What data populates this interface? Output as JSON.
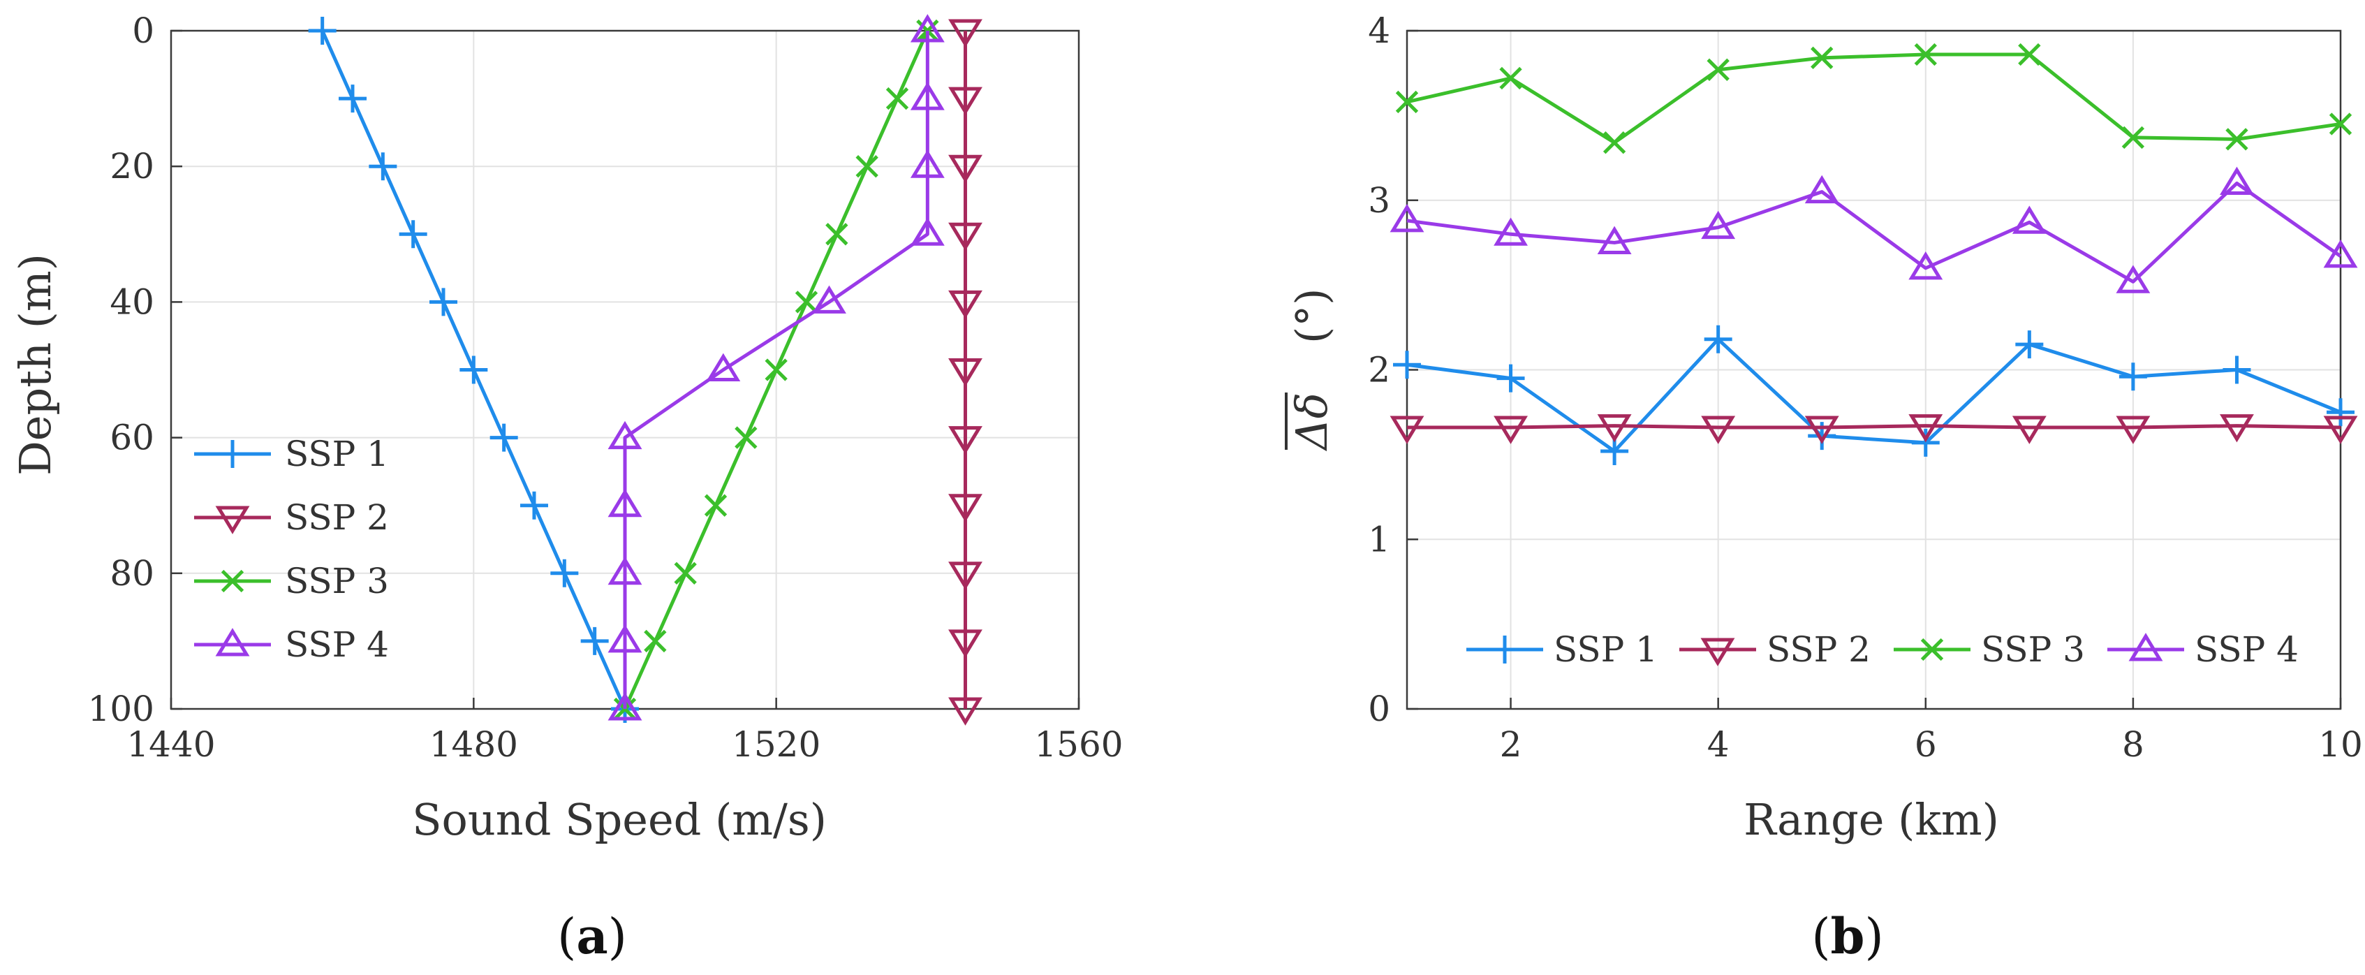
{
  "chart_data": [
    {
      "id": "a",
      "panel_label": "a",
      "type": "line",
      "xlabel": "Sound Speed (m/s)",
      "ylabel": "Depth (m)",
      "xlim": [
        1440,
        1560
      ],
      "ylim": [
        0,
        100
      ],
      "y_reversed": true,
      "xticks": [
        1440,
        1480,
        1520,
        1560
      ],
      "yticks": [
        0,
        20,
        40,
        60,
        80,
        100
      ],
      "grid": true,
      "legend_location": "bottom-left",
      "series": [
        {
          "name": "SSP 1",
          "marker": "plus",
          "color": "#1f8ceb",
          "x": [
            1460,
            1464,
            1468,
            1472,
            1476,
            1480,
            1484,
            1488,
            1492,
            1496,
            1500
          ],
          "y": [
            0,
            10,
            20,
            30,
            40,
            50,
            60,
            70,
            80,
            90,
            100
          ]
        },
        {
          "name": "SSP 2",
          "marker": "triangle-down",
          "color": "#a7295c",
          "x": [
            1545,
            1545,
            1545,
            1545,
            1545,
            1545,
            1545,
            1545,
            1545,
            1545,
            1545
          ],
          "y": [
            0,
            10,
            20,
            30,
            40,
            50,
            60,
            70,
            80,
            90,
            100
          ]
        },
        {
          "name": "SSP 3",
          "marker": "x",
          "color": "#3bbf2b",
          "x": [
            1540,
            1536,
            1532,
            1528,
            1524,
            1520,
            1516,
            1512,
            1508,
            1504,
            1500
          ],
          "y": [
            0,
            10,
            20,
            30,
            40,
            50,
            60,
            70,
            80,
            90,
            100
          ]
        },
        {
          "name": "SSP 4",
          "marker": "triangle-up",
          "color": "#9a3ae8",
          "x": [
            1540,
            1540,
            1540,
            1540,
            1527,
            1513,
            1500,
            1500,
            1500,
            1500,
            1500
          ],
          "y": [
            0,
            10,
            20,
            30,
            40,
            50,
            60,
            70,
            80,
            90,
            100
          ]
        }
      ]
    },
    {
      "id": "b",
      "panel_label": "b",
      "type": "line",
      "xlabel": "Range (km)",
      "ylabel_main": "Δδ",
      "ylabel_unit": "(°)",
      "xlim": [
        1,
        10
      ],
      "ylim": [
        0,
        4
      ],
      "xticks": [
        2,
        4,
        6,
        8,
        10
      ],
      "yticks": [
        0,
        1,
        2,
        3,
        4
      ],
      "grid": true,
      "legend_location": "bottom, horizontal",
      "series": [
        {
          "name": "SSP 1",
          "marker": "plus",
          "color": "#1f8ceb",
          "x": [
            1,
            2,
            3,
            4,
            5,
            6,
            7,
            8,
            9,
            10
          ],
          "y": [
            2.03,
            1.95,
            1.52,
            2.18,
            1.61,
            1.57,
            2.15,
            1.96,
            2.0,
            1.75
          ]
        },
        {
          "name": "SSP 2",
          "marker": "triangle-down",
          "color": "#a7295c",
          "x": [
            1,
            2,
            3,
            4,
            5,
            6,
            7,
            8,
            9,
            10
          ],
          "y": [
            1.66,
            1.66,
            1.67,
            1.66,
            1.66,
            1.67,
            1.66,
            1.66,
            1.67,
            1.66
          ]
        },
        {
          "name": "SSP 3",
          "marker": "x",
          "color": "#3bbf2b",
          "x": [
            1,
            2,
            3,
            4,
            5,
            6,
            7,
            8,
            9,
            10
          ],
          "y": [
            3.58,
            3.72,
            3.34,
            3.77,
            3.84,
            3.86,
            3.86,
            3.37,
            3.36,
            3.45
          ]
        },
        {
          "name": "SSP 4",
          "marker": "triangle-up",
          "color": "#9a3ae8",
          "x": [
            1,
            2,
            3,
            4,
            5,
            6,
            7,
            8,
            9,
            10
          ],
          "y": [
            2.88,
            2.8,
            2.75,
            2.84,
            3.05,
            2.6,
            2.87,
            2.52,
            3.1,
            2.67
          ]
        }
      ]
    }
  ]
}
